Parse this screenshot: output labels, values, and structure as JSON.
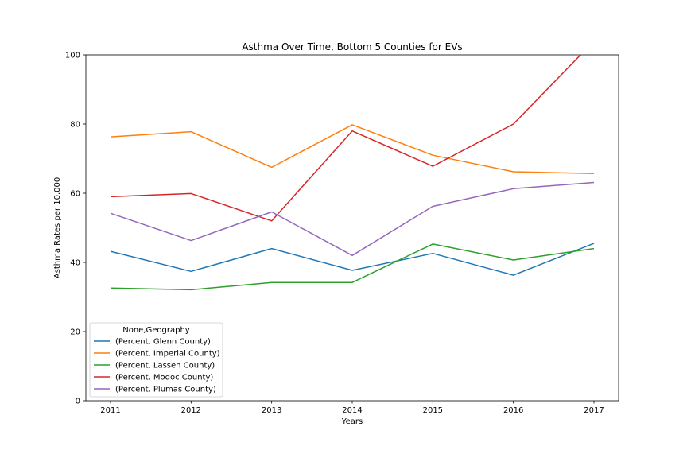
{
  "chart_data": {
    "type": "line",
    "title": "Asthma Over Time, Bottom 5 Counties for EVs",
    "xlabel": "Years",
    "ylabel": "Asthma Rates per 10,000",
    "x": [
      2011,
      2012,
      2013,
      2014,
      2015,
      2016,
      2017
    ],
    "x_tick_labels": [
      "2011",
      "2012",
      "2013",
      "2014",
      "2015",
      "2016",
      "2017"
    ],
    "ylim": [
      0,
      100
    ],
    "y_ticks": [
      0,
      20,
      40,
      60,
      80,
      100
    ],
    "y_tick_labels": [
      "0",
      "20",
      "40",
      "60",
      "80",
      "100"
    ],
    "grid": false,
    "legend_title": "None,Geography",
    "legend_position": "lower-left",
    "series": [
      {
        "name": "(Percent, Glenn County)",
        "color": "#1f77b4",
        "values": [
          43.2,
          37.4,
          44.0,
          37.7,
          42.6,
          36.3,
          45.5
        ]
      },
      {
        "name": "(Percent, Imperial County)",
        "color": "#ff7f0e",
        "values": [
          76.3,
          77.8,
          67.5,
          79.8,
          71.0,
          66.2,
          65.7
        ]
      },
      {
        "name": "(Percent, Lassen County)",
        "color": "#2ca02c",
        "values": [
          32.6,
          32.1,
          34.2,
          34.2,
          45.3,
          40.7,
          44.0
        ]
      },
      {
        "name": "(Percent, Modoc County)",
        "color": "#d62728",
        "values": [
          59.0,
          59.9,
          52.0,
          78.0,
          67.8,
          80.0,
          104.0
        ]
      },
      {
        "name": "(Percent, Plumas County)",
        "color": "#9467bd",
        "values": [
          54.2,
          46.3,
          54.6,
          42.0,
          56.2,
          61.3,
          63.1
        ]
      }
    ]
  }
}
